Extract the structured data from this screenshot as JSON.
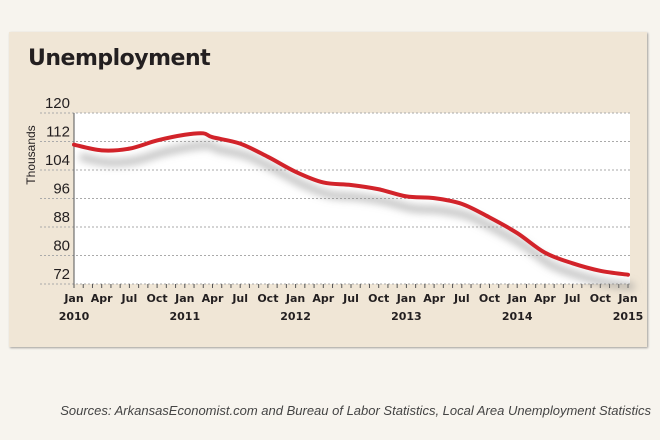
{
  "chart_data": {
    "type": "line",
    "title": "Unemployment",
    "ylabel": "Thousands",
    "xlabel": "",
    "ylim": [
      72,
      120
    ],
    "yticks": [
      "120",
      "112",
      "104",
      "96",
      "88",
      "80",
      "72"
    ],
    "xticks": [
      "Jan",
      "Apr",
      "Jul",
      "Oct",
      "Jan",
      "Apr",
      "Jul",
      "Oct",
      "Jan",
      "Apr",
      "Jul",
      "Oct",
      "Jan",
      "Apr",
      "Jul",
      "Oct",
      "Jan",
      "Apr",
      "Jul",
      "Oct",
      "Jan"
    ],
    "years": [
      "2010",
      "2011",
      "2012",
      "2013",
      "2014",
      "2015"
    ],
    "grid": true,
    "series": [
      {
        "name": "Unemployment",
        "color": "#d2232a",
        "x": [
          "Jan 2010",
          "Apr 2010",
          "Jul 2010",
          "Oct 2010",
          "Jan 2011",
          "Mar 2011",
          "Apr 2011",
          "Jul 2011",
          "Oct 2011",
          "Jan 2012",
          "Apr 2012",
          "Jul 2012",
          "Oct 2012",
          "Jan 2013",
          "Apr 2013",
          "Jul 2013",
          "Oct 2013",
          "Jan 2014",
          "Apr 2014",
          "Jul 2014",
          "Oct 2014",
          "Jan 2015"
        ],
        "month_index": [
          0,
          3,
          6,
          9,
          12,
          14,
          15,
          18,
          21,
          24,
          27,
          30,
          33,
          36,
          39,
          42,
          45,
          48,
          51,
          54,
          57,
          60
        ],
        "values": [
          111.1,
          109.5,
          110.0,
          112.3,
          113.9,
          114.3,
          113.2,
          111.4,
          107.7,
          103.5,
          100.5,
          99.8,
          98.6,
          96.6,
          96.1,
          94.5,
          90.7,
          86.3,
          80.8,
          77.8,
          75.7,
          74.6
        ]
      }
    ]
  },
  "source": "Sources: ArkansasEconomist.com and Bureau of Labor Statistics, Local Area Unemployment Statistics"
}
